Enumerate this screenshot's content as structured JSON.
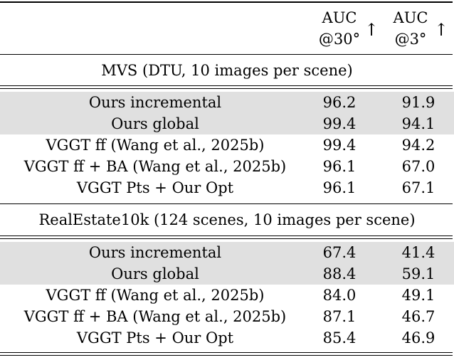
{
  "header": {
    "col1_line1": "AUC",
    "col1_line2": "@30°",
    "col2_line1": "AUC",
    "col2_line2": "@3°",
    "arrow": "↑"
  },
  "sections": [
    {
      "title": "MVS (DTU, 10 images per scene)",
      "rows": [
        {
          "method": "Ours incremental",
          "auc30": "96.2",
          "auc3": "91.9",
          "shaded": true
        },
        {
          "method": "Ours global",
          "auc30": "99.4",
          "auc3": "94.1",
          "shaded": true
        },
        {
          "method": "VGGT ff (Wang et al., 2025b)",
          "auc30": "99.4",
          "auc3": "94.2",
          "shaded": false
        },
        {
          "method": "VGGT ff + BA (Wang et al., 2025b)",
          "auc30": "96.1",
          "auc3": "67.0",
          "shaded": false
        },
        {
          "method": "VGGT Pts + Our Opt",
          "auc30": "96.1",
          "auc3": "67.1",
          "shaded": false
        }
      ]
    },
    {
      "title": "RealEstate10k (124 scenes, 10 images per scene)",
      "rows": [
        {
          "method": "Ours incremental",
          "auc30": "67.4",
          "auc3": "41.4",
          "shaded": true
        },
        {
          "method": "Ours global",
          "auc30": "88.4",
          "auc3": "59.1",
          "shaded": true
        },
        {
          "method": "VGGT ff (Wang et al., 2025b)",
          "auc30": "84.0",
          "auc3": "49.1",
          "shaded": false
        },
        {
          "method": "VGGT ff + BA (Wang et al., 2025b)",
          "auc30": "87.1",
          "auc3": "46.7",
          "shaded": false
        },
        {
          "method": "VGGT Pts + Our Opt",
          "auc30": "85.4",
          "auc3": "46.9",
          "shaded": false
        }
      ]
    }
  ],
  "colors": {
    "shade": "#e0e0e0",
    "rule": "#000000"
  }
}
